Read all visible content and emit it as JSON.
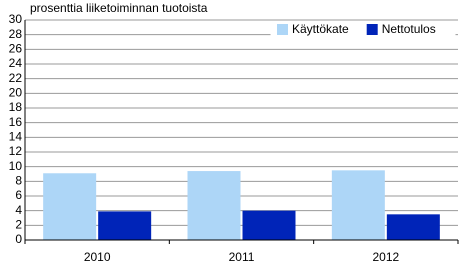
{
  "chart_data": {
    "type": "bar",
    "subtitle": "prosenttia liiketoiminnan tuotoista",
    "categories": [
      "2010",
      "2011",
      "2012"
    ],
    "series": [
      {
        "name": "Käyttökate",
        "color": "#add6f7",
        "values": [
          9.1,
          9.4,
          9.5
        ]
      },
      {
        "name": "Nettotulos",
        "color": "#0024b8",
        "values": [
          3.9,
          4.0,
          3.5
        ]
      }
    ],
    "ylim": [
      0,
      30
    ],
    "yticks": [
      0,
      2,
      4,
      6,
      8,
      10,
      12,
      14,
      16,
      18,
      20,
      22,
      24,
      26,
      28,
      30
    ],
    "grid": true,
    "legend": "top-right"
  }
}
